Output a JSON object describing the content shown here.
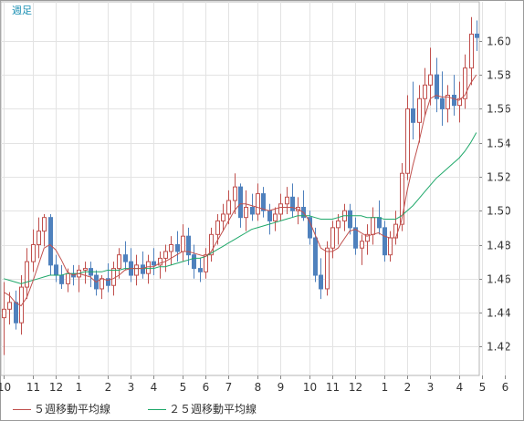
{
  "chart_data": {
    "type": "candlestick",
    "period_label": "週足",
    "y_ticks": [
      "1.60",
      "1.58",
      "1.56",
      "1.54",
      "1.52",
      "1.50",
      "1.48",
      "1.46",
      "1.44",
      "1.42"
    ],
    "ylim": [
      1.403,
      1.623
    ],
    "x_tick_labels": [
      "10",
      "11",
      "12",
      "1",
      "2",
      "3",
      "4",
      "5",
      "6",
      "7",
      "8",
      "9",
      "10",
      "11",
      "12",
      "1",
      "2",
      "3",
      "4",
      "5",
      "6"
    ],
    "x_tick_positions": [
      0,
      5,
      9,
      13,
      18,
      22,
      26,
      31,
      35,
      39,
      44,
      48,
      53,
      57,
      61,
      66,
      70,
      74,
      79,
      83,
      87
    ],
    "grid": true,
    "colors": {
      "up": "#c0504d",
      "down": "#4f81bd",
      "ma5": "#c0504d",
      "ma25": "#1fa86a"
    },
    "candles": [
      [
        1.437,
        1.458,
        1.415,
        1.442
      ],
      [
        1.442,
        1.452,
        1.433,
        1.446
      ],
      [
        1.446,
        1.453,
        1.43,
        1.434
      ],
      [
        1.434,
        1.462,
        1.427,
        1.455
      ],
      [
        1.455,
        1.478,
        1.448,
        1.47
      ],
      [
        1.47,
        1.489,
        1.464,
        1.48
      ],
      [
        1.48,
        1.496,
        1.472,
        1.488
      ],
      [
        1.488,
        1.498,
        1.479,
        1.496
      ],
      [
        1.496,
        1.498,
        1.462,
        1.468
      ],
      [
        1.468,
        1.474,
        1.458,
        1.462
      ],
      [
        1.462,
        1.468,
        1.454,
        1.457
      ],
      [
        1.457,
        1.466,
        1.452,
        1.463
      ],
      [
        1.463,
        1.468,
        1.456,
        1.461
      ],
      [
        1.461,
        1.468,
        1.452,
        1.465
      ],
      [
        1.465,
        1.47,
        1.457,
        1.466
      ],
      [
        1.466,
        1.47,
        1.455,
        1.462
      ],
      [
        1.462,
        1.465,
        1.45,
        1.454
      ],
      [
        1.454,
        1.462,
        1.448,
        1.46
      ],
      [
        1.46,
        1.469,
        1.452,
        1.456
      ],
      [
        1.456,
        1.47,
        1.45,
        1.466
      ],
      [
        1.466,
        1.478,
        1.46,
        1.474
      ],
      [
        1.474,
        1.482,
        1.465,
        1.47
      ],
      [
        1.47,
        1.478,
        1.458,
        1.462
      ],
      [
        1.462,
        1.474,
        1.456,
        1.468
      ],
      [
        1.468,
        1.476,
        1.46,
        1.463
      ],
      [
        1.463,
        1.474,
        1.457,
        1.47
      ],
      [
        1.47,
        1.478,
        1.462,
        1.468
      ],
      [
        1.468,
        1.476,
        1.46,
        1.472
      ],
      [
        1.472,
        1.48,
        1.464,
        1.476
      ],
      [
        1.476,
        1.485,
        1.468,
        1.48
      ],
      [
        1.48,
        1.488,
        1.47,
        1.476
      ],
      [
        1.476,
        1.492,
        1.47,
        1.485
      ],
      [
        1.485,
        1.49,
        1.468,
        1.474
      ],
      [
        1.474,
        1.48,
        1.46,
        1.466
      ],
      [
        1.466,
        1.472,
        1.458,
        1.464
      ],
      [
        1.464,
        1.478,
        1.46,
        1.474
      ],
      [
        1.474,
        1.49,
        1.47,
        1.486
      ],
      [
        1.486,
        1.498,
        1.48,
        1.494
      ],
      [
        1.494,
        1.504,
        1.488,
        1.498
      ],
      [
        1.498,
        1.512,
        1.492,
        1.506
      ],
      [
        1.506,
        1.522,
        1.498,
        1.514
      ],
      [
        1.514,
        1.516,
        1.49,
        1.496
      ],
      [
        1.496,
        1.512,
        1.488,
        1.502
      ],
      [
        1.502,
        1.51,
        1.494,
        1.498
      ],
      [
        1.498,
        1.516,
        1.494,
        1.51
      ],
      [
        1.51,
        1.514,
        1.496,
        1.5
      ],
      [
        1.5,
        1.504,
        1.486,
        1.494
      ],
      [
        1.494,
        1.502,
        1.488,
        1.498
      ],
      [
        1.498,
        1.51,
        1.494,
        1.504
      ],
      [
        1.504,
        1.514,
        1.498,
        1.508
      ],
      [
        1.508,
        1.516,
        1.496,
        1.5
      ],
      [
        1.5,
        1.508,
        1.492,
        1.502
      ],
      [
        1.502,
        1.512,
        1.494,
        1.496
      ],
      [
        1.496,
        1.5,
        1.48,
        1.484
      ],
      [
        1.484,
        1.49,
        1.458,
        1.462
      ],
      [
        1.462,
        1.472,
        1.448,
        1.454
      ],
      [
        1.454,
        1.482,
        1.45,
        1.478
      ],
      [
        1.478,
        1.494,
        1.472,
        1.49
      ],
      [
        1.49,
        1.498,
        1.48,
        1.494
      ],
      [
        1.494,
        1.504,
        1.488,
        1.5
      ],
      [
        1.5,
        1.504,
        1.486,
        1.49
      ],
      [
        1.49,
        1.496,
        1.474,
        1.478
      ],
      [
        1.478,
        1.486,
        1.468,
        1.482
      ],
      [
        1.482,
        1.492,
        1.474,
        1.486
      ],
      [
        1.486,
        1.502,
        1.48,
        1.496
      ],
      [
        1.496,
        1.506,
        1.486,
        1.49
      ],
      [
        1.49,
        1.494,
        1.47,
        1.474
      ],
      [
        1.474,
        1.488,
        1.47,
        1.484
      ],
      [
        1.484,
        1.5,
        1.48,
        1.492
      ],
      [
        1.492,
        1.528,
        1.488,
        1.522
      ],
      [
        1.522,
        1.568,
        1.518,
        1.56
      ],
      [
        1.56,
        1.576,
        1.542,
        1.552
      ],
      [
        1.552,
        1.574,
        1.54,
        1.566
      ],
      [
        1.566,
        1.584,
        1.556,
        1.574
      ],
      [
        1.574,
        1.596,
        1.562,
        1.58
      ],
      [
        1.58,
        1.59,
        1.558,
        1.566
      ],
      [
        1.566,
        1.582,
        1.55,
        1.56
      ],
      [
        1.56,
        1.574,
        1.552,
        1.568
      ],
      [
        1.568,
        1.58,
        1.556,
        1.562
      ],
      [
        1.562,
        1.576,
        1.552,
        1.566
      ],
      [
        1.566,
        1.592,
        1.56,
        1.584
      ],
      [
        1.584,
        1.614,
        1.574,
        1.604
      ],
      [
        1.604,
        1.612,
        1.594,
        1.602
      ]
    ],
    "ma5": [
      1.452,
      1.45,
      1.446,
      1.444,
      1.449,
      1.458,
      1.468,
      1.478,
      1.48,
      1.477,
      1.471,
      1.464,
      1.462,
      1.463,
      1.462,
      1.461,
      1.458,
      1.46,
      1.459,
      1.46,
      1.462,
      1.465,
      1.466,
      1.466,
      1.466,
      1.467,
      1.467,
      1.469,
      1.47,
      1.472,
      1.474,
      1.476,
      1.476,
      1.475,
      1.474,
      1.473,
      1.476,
      1.482,
      1.488,
      1.494,
      1.5,
      1.504,
      1.504,
      1.503,
      1.502,
      1.501,
      1.5,
      1.501,
      1.502,
      1.502,
      1.502,
      1.501,
      1.499,
      1.494,
      1.486,
      1.478,
      1.476,
      1.476,
      1.478,
      1.483,
      1.488,
      1.489,
      1.487,
      1.485,
      1.486,
      1.487,
      1.485,
      1.484,
      1.484,
      1.494,
      1.512,
      1.527,
      1.54,
      1.555,
      1.566,
      1.568,
      1.567,
      1.567,
      1.566,
      1.565,
      1.568,
      1.575,
      1.58
    ],
    "ma25": [
      1.46,
      1.459,
      1.458,
      1.457,
      1.458,
      1.459,
      1.46,
      1.461,
      1.462,
      1.462,
      1.462,
      1.463,
      1.463,
      1.463,
      1.464,
      1.464,
      1.464,
      1.464,
      1.465,
      1.465,
      1.465,
      1.466,
      1.466,
      1.466,
      1.466,
      1.466,
      1.466,
      1.467,
      1.467,
      1.468,
      1.469,
      1.47,
      1.471,
      1.472,
      1.472,
      1.473,
      1.475,
      1.477,
      1.479,
      1.481,
      1.483,
      1.485,
      1.487,
      1.489,
      1.49,
      1.491,
      1.492,
      1.493,
      1.494,
      1.495,
      1.496,
      1.497,
      1.497,
      1.497,
      1.496,
      1.495,
      1.495,
      1.495,
      1.496,
      1.497,
      1.497,
      1.497,
      1.497,
      1.496,
      1.496,
      1.496,
      1.495,
      1.495,
      1.495,
      1.497,
      1.5,
      1.503,
      1.507,
      1.511,
      1.515,
      1.519,
      1.522,
      1.525,
      1.528,
      1.531,
      1.535,
      1.54,
      1.546
    ],
    "legend": [
      {
        "name": "５週移動平均線",
        "color": "#c0504d"
      },
      {
        "name": "２５週移動平均線",
        "color": "#1fa86a"
      }
    ]
  }
}
